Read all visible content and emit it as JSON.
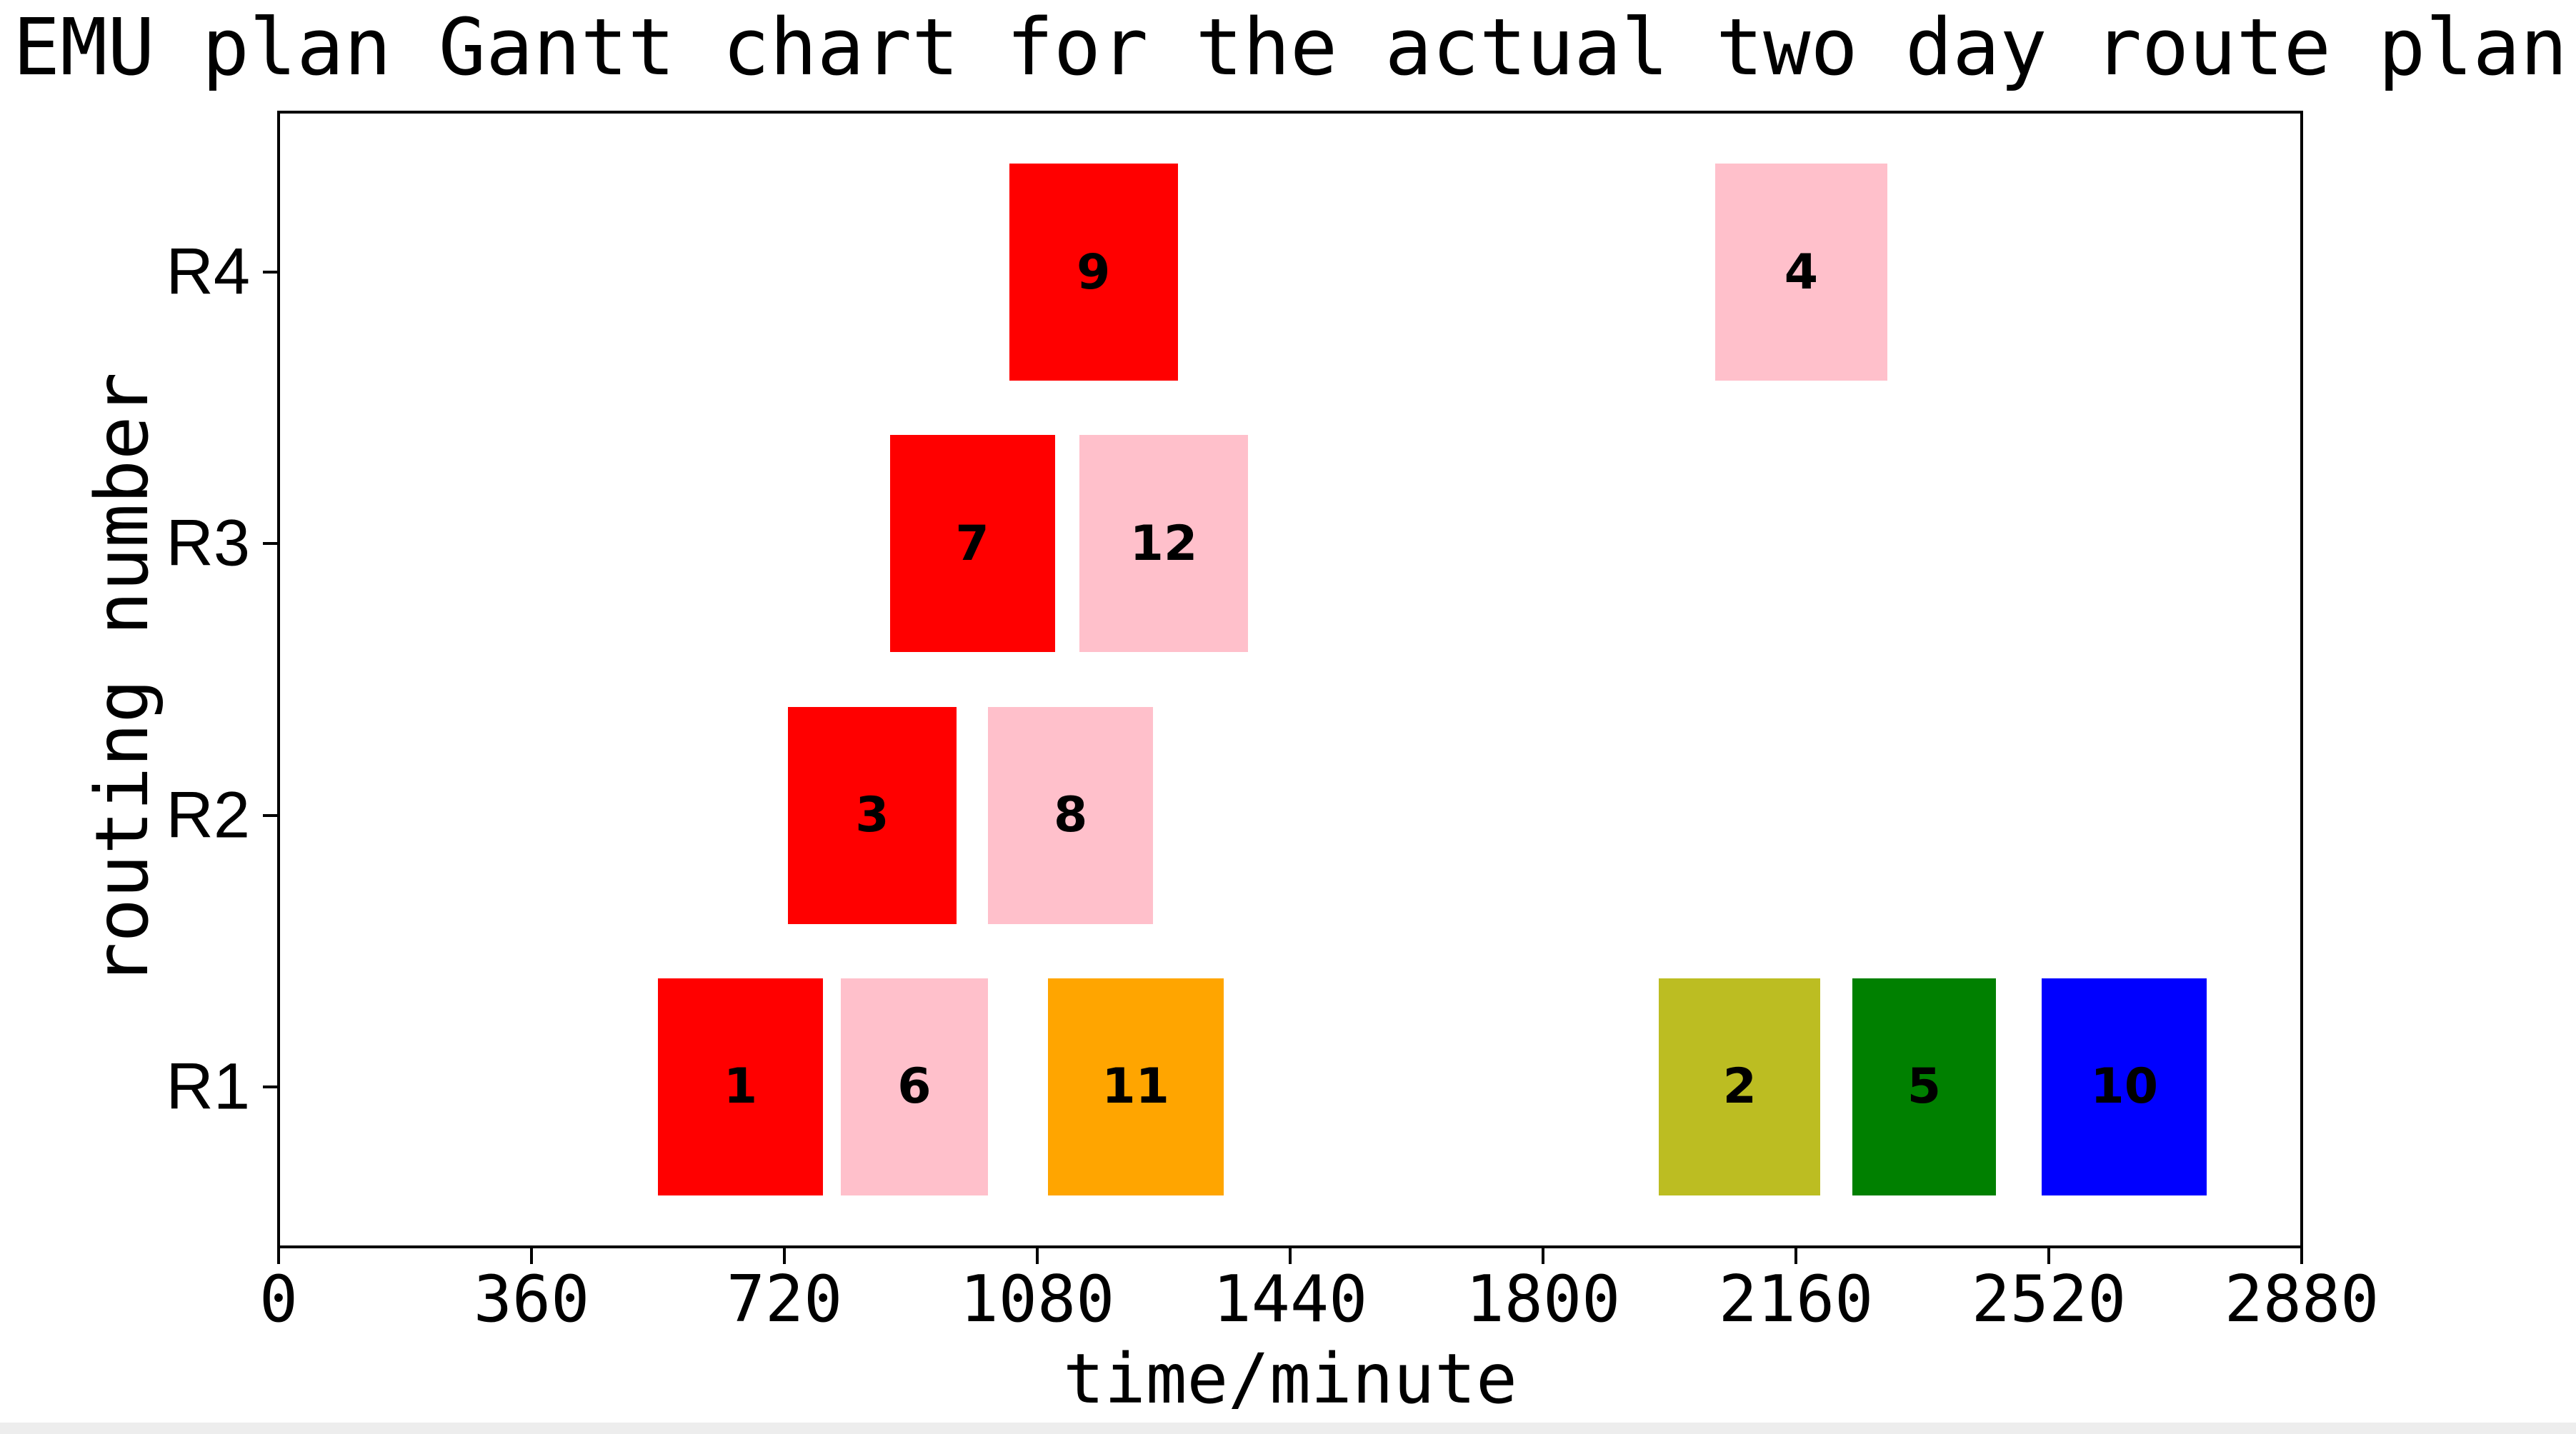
{
  "chart_data": {
    "type": "bar",
    "variant": "gantt-horizontal",
    "title": "EMU plan Gantt chart for the actual two day route plan",
    "xlabel": "time/minute",
    "ylabel": "routing number",
    "xlim": [
      0,
      2880
    ],
    "ylim": [
      0.41,
      4.59
    ],
    "xticks": [
      0,
      360,
      720,
      1080,
      1440,
      1800,
      2160,
      2520,
      2880
    ],
    "rows": [
      "R1",
      "R2",
      "R3",
      "R4"
    ],
    "bar_height_fraction": 0.8,
    "grid": false,
    "legend": null,
    "axis_color": "#000000",
    "background_color": "#ffffff",
    "bars": [
      {
        "trip": "1",
        "row": "R1",
        "start": 540,
        "end": 775,
        "color": "#ff0000"
      },
      {
        "trip": "6",
        "row": "R1",
        "start": 800,
        "end": 1010,
        "color": "#ffc0cb"
      },
      {
        "trip": "11",
        "row": "R1",
        "start": 1095,
        "end": 1345,
        "color": "#ffa500"
      },
      {
        "trip": "2",
        "row": "R1",
        "start": 1965,
        "end": 2195,
        "color": "#bcbd22"
      },
      {
        "trip": "5",
        "row": "R1",
        "start": 2240,
        "end": 2445,
        "color": "#008000"
      },
      {
        "trip": "10",
        "row": "R1",
        "start": 2510,
        "end": 2745,
        "color": "#0000ff"
      },
      {
        "trip": "3",
        "row": "R2",
        "start": 725,
        "end": 965,
        "color": "#ff0000"
      },
      {
        "trip": "8",
        "row": "R2",
        "start": 1010,
        "end": 1245,
        "color": "#ffc0cb"
      },
      {
        "trip": "7",
        "row": "R3",
        "start": 870,
        "end": 1105,
        "color": "#ff0000"
      },
      {
        "trip": "12",
        "row": "R3",
        "start": 1140,
        "end": 1380,
        "color": "#ffc0cb"
      },
      {
        "trip": "9",
        "row": "R4",
        "start": 1040,
        "end": 1280,
        "color": "#ff0000"
      },
      {
        "trip": "4",
        "row": "R4",
        "start": 2045,
        "end": 2290,
        "color": "#ffc0cb"
      }
    ]
  }
}
